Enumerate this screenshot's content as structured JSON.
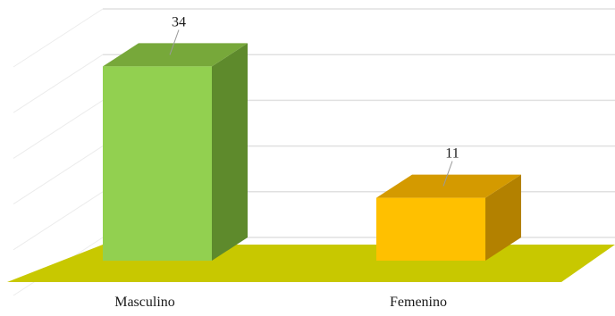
{
  "chart_data": {
    "type": "bar",
    "categories": [
      "Masculino",
      "Femenino"
    ],
    "values": [
      34,
      11
    ],
    "ylim": [
      0,
      40
    ],
    "grid": true,
    "colors": {
      "bars": [
        "#92d050",
        "#ffc000"
      ],
      "bars_top": [
        "#77a83a",
        "#d49a00"
      ],
      "bars_side": [
        "#5e8a2c",
        "#b38100"
      ],
      "floor": "#c8c800",
      "gridlines": "#e0e0e0"
    }
  }
}
